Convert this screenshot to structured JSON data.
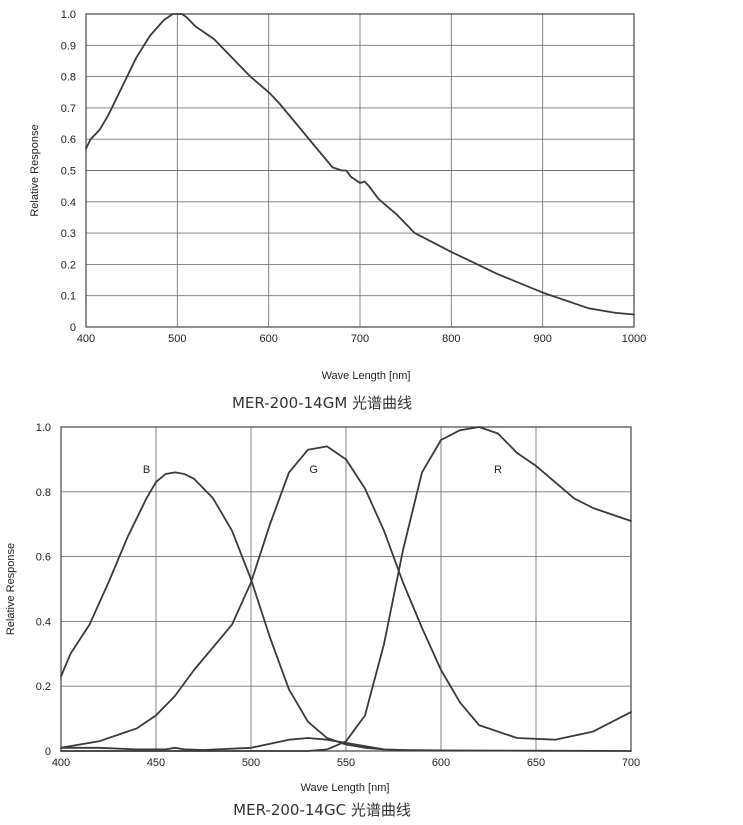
{
  "chart_data": [
    {
      "type": "line",
      "title": "",
      "caption": "MER-200-14GM 光谱曲线",
      "xlabel": "Wave Length [nm]",
      "ylabel": "Relative Response",
      "xlim": [
        400,
        1000
      ],
      "ylim": [
        0,
        1.0
      ],
      "grid": true,
      "xticks": [
        400,
        500,
        600,
        700,
        800,
        900,
        1000
      ],
      "xtick_labels": [
        "400",
        "500",
        "600",
        "700",
        "800",
        "900",
        "1000"
      ],
      "yticks": [
        0,
        0.1,
        0.2,
        0.3,
        0.4,
        0.5,
        0.6,
        0.7,
        0.8,
        0.9,
        1.0
      ],
      "ytick_labels": [
        "0",
        "0.1",
        "0.2",
        "0.3",
        "0.4",
        "0.5",
        "0.6",
        "0.7",
        "0.8",
        "0.9",
        "1.0"
      ],
      "series": [
        {
          "x": [
            400,
            405,
            415,
            425,
            440,
            455,
            470,
            485,
            495,
            500,
            505,
            510,
            520,
            540,
            560,
            580,
            600,
            610,
            630,
            650,
            670,
            680,
            685,
            690,
            700,
            705,
            710,
            720,
            740,
            760,
            800,
            850,
            900,
            950,
            980,
            1000
          ],
          "y": [
            0.57,
            0.6,
            0.63,
            0.68,
            0.77,
            0.86,
            0.93,
            0.98,
            1.0,
            1.0,
            1.0,
            0.99,
            0.96,
            0.92,
            0.86,
            0.8,
            0.75,
            0.72,
            0.65,
            0.58,
            0.51,
            0.5,
            0.5,
            0.48,
            0.46,
            0.465,
            0.45,
            0.41,
            0.36,
            0.3,
            0.24,
            0.17,
            0.11,
            0.06,
            0.045,
            0.04
          ]
        }
      ]
    },
    {
      "type": "line",
      "title": "",
      "caption": "MER-200-14GC 光谱曲线",
      "xlabel": "Wave Length [nm]",
      "ylabel": "Relative Response",
      "xlim": [
        400,
        700
      ],
      "ylim": [
        0,
        1.0
      ],
      "grid": true,
      "xticks": [
        400,
        450,
        500,
        550,
        600,
        650,
        700
      ],
      "xtick_labels": [
        "400",
        "450",
        "500",
        "550",
        "600",
        "650",
        "700"
      ],
      "yticks": [
        0,
        0.2,
        0.4,
        0.6,
        0.8,
        1.0
      ],
      "ytick_labels": [
        "0",
        "0.2",
        "0.4",
        "0.6",
        "0.8",
        "1.0"
      ],
      "series": [
        {
          "name": "B",
          "label_at": [
            445,
            0.87
          ],
          "x": [
            400,
            405,
            415,
            425,
            435,
            445,
            450,
            455,
            460,
            465,
            470,
            480,
            490,
            500,
            510,
            520,
            530,
            540,
            550,
            560,
            570,
            580,
            600,
            650,
            700
          ],
          "y": [
            0.23,
            0.3,
            0.39,
            0.52,
            0.66,
            0.78,
            0.83,
            0.855,
            0.86,
            0.855,
            0.84,
            0.78,
            0.68,
            0.53,
            0.35,
            0.19,
            0.09,
            0.04,
            0.02,
            0.01,
            0.005,
            0.003,
            0.002,
            0.001,
            0.0
          ],
          "x2": [
            400,
            420,
            440,
            455,
            460,
            465,
            475,
            500,
            520,
            530,
            540,
            550,
            560,
            570
          ],
          "y2": [
            0.01,
            0.01,
            0.005,
            0.005,
            0.01,
            0.005,
            0.003,
            0.01,
            0.035,
            0.04,
            0.035,
            0.025,
            0.015,
            0.005
          ]
        },
        {
          "name": "G",
          "label_at": [
            533,
            0.87
          ],
          "x": [
            400,
            420,
            440,
            450,
            460,
            470,
            490,
            500,
            510,
            520,
            530,
            540,
            550,
            560,
            570,
            580,
            590,
            600,
            610,
            620,
            640,
            660,
            680,
            700
          ],
          "y": [
            0.01,
            0.03,
            0.07,
            0.11,
            0.17,
            0.25,
            0.39,
            0.52,
            0.7,
            0.86,
            0.93,
            0.94,
            0.9,
            0.81,
            0.68,
            0.52,
            0.38,
            0.25,
            0.15,
            0.08,
            0.04,
            0.035,
            0.06,
            0.12
          ]
        },
        {
          "name": "R",
          "label_at": [
            630,
            0.87
          ],
          "x": [
            400,
            450,
            500,
            530,
            540,
            550,
            560,
            570,
            580,
            590,
            600,
            610,
            620,
            630,
            640,
            650,
            660,
            670,
            680,
            690,
            700
          ],
          "y": [
            0.0,
            0.0,
            0.0,
            0.0,
            0.005,
            0.03,
            0.11,
            0.33,
            0.62,
            0.86,
            0.96,
            0.99,
            1.0,
            0.98,
            0.92,
            0.88,
            0.83,
            0.78,
            0.75,
            0.73,
            0.71
          ]
        }
      ]
    }
  ]
}
